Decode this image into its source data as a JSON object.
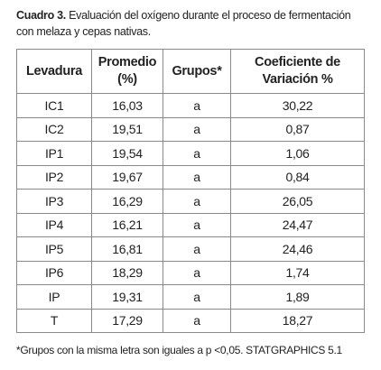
{
  "caption": {
    "label": "Cuadro 3.",
    "text": "Evaluación del oxígeno durante el proceso de fermentación con melaza y cepas nativas."
  },
  "table": {
    "headers": [
      "Levadura",
      "Promedio (%)",
      "Grupos*",
      "Coeficiente de Variación %"
    ],
    "rows": [
      [
        "IC1",
        "16,03",
        "a",
        "30,22"
      ],
      [
        "IC2",
        "19,51",
        "a",
        "0,87"
      ],
      [
        "IP1",
        "19,54",
        "a",
        "1,06"
      ],
      [
        "IP2",
        "19,67",
        "a",
        "0,84"
      ],
      [
        "IP3",
        "16,29",
        "a",
        "26,05"
      ],
      [
        "IP4",
        "16,21",
        "a",
        "24,47"
      ],
      [
        "IP5",
        "16,81",
        "a",
        "24,46"
      ],
      [
        "IP6",
        "18,29",
        "a",
        "1,74"
      ],
      [
        "IP",
        "19,31",
        "a",
        "1,89"
      ],
      [
        "T",
        "17,29",
        "a",
        "18,27"
      ]
    ]
  },
  "footnote": "*Grupos con la misma letra son iguales a p <0,05. STATGRAPHICS 5.1"
}
